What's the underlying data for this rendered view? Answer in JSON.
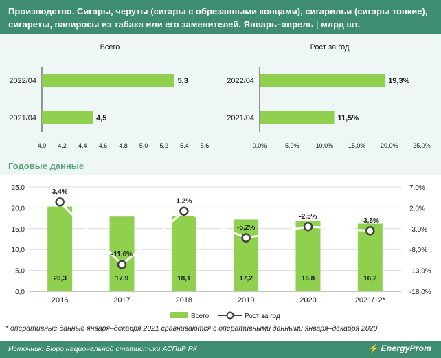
{
  "header": {
    "title": "Производство. Сигары, черуты (сигары с обрезанными концами), сигарильи (сигары тонкие), сигареты, папиросы из табака или его заменителей. Январь–апрель",
    "separator": "|",
    "unit": "млрд шт."
  },
  "section": {
    "title": "Годовые данные"
  },
  "colors": {
    "bar": "#8fd14f",
    "line": "#ffffff",
    "header_bg": "#3e8d70",
    "panel_bg": "#eef6f6",
    "section_title": "#5aa77a"
  },
  "chart_data": [
    {
      "type": "bar",
      "orientation": "horizontal",
      "title": "Всего",
      "categories": [
        "2022/04",
        "2021/04"
      ],
      "values": [
        5.3,
        4.5
      ],
      "value_labels": [
        "5,3",
        "4,5"
      ],
      "xlim": [
        4.0,
        5.6
      ],
      "xticks": [
        "4,0",
        "4,2",
        "4,4",
        "4,6",
        "4,8",
        "5,0",
        "5,2",
        "5,4",
        "5,6"
      ]
    },
    {
      "type": "bar",
      "orientation": "horizontal",
      "title": "Рост за год",
      "categories": [
        "2022/04",
        "2021/04"
      ],
      "values": [
        19.3,
        11.5
      ],
      "value_labels": [
        "19,3%",
        "11,5%"
      ],
      "xlim": [
        0,
        25
      ],
      "xticks": [
        "0,0%",
        "5,0%",
        "10,0%",
        "15,0%",
        "20,0%",
        "25,0%"
      ]
    },
    {
      "type": "bar",
      "categories": [
        "2016",
        "2017",
        "2018",
        "2019",
        "2020",
        "2021/12*"
      ],
      "series": [
        {
          "name": "Всего",
          "type": "bar",
          "axis": "left",
          "values": [
            20.3,
            17.9,
            18.1,
            17.2,
            16.8,
            16.2
          ],
          "labels": [
            "20,3",
            "17,9",
            "18,1",
            "17,2",
            "16,8",
            "16,2"
          ]
        },
        {
          "name": "Рост за год",
          "type": "line",
          "axis": "right",
          "values": [
            3.4,
            -11.6,
            1.2,
            -5.2,
            -2.5,
            -3.5
          ],
          "labels": [
            "3,4%",
            "-11,6%",
            "1,2%",
            "-5,2%",
            "-2,5%",
            "-3,5%"
          ]
        }
      ],
      "ylim_left": [
        0,
        25
      ],
      "yticks_left": [
        "0,0",
        "5,0",
        "10,0",
        "15,0",
        "20,0",
        "25,0"
      ],
      "ylim_right": [
        -18,
        7
      ],
      "yticks_right": [
        "-18,0%",
        "-13,0%",
        "-8,0%",
        "-3,0%",
        "2,0%",
        "7,0%"
      ],
      "legend": "bottom"
    }
  ],
  "footnote": "* оперативные данные января–декабря 2021 сравниваются с оперативными данными января–декабря 2020",
  "footer": {
    "source": "Источник: Бюро национальной статистики АСПиР РК",
    "logo": "EnergyProm"
  }
}
